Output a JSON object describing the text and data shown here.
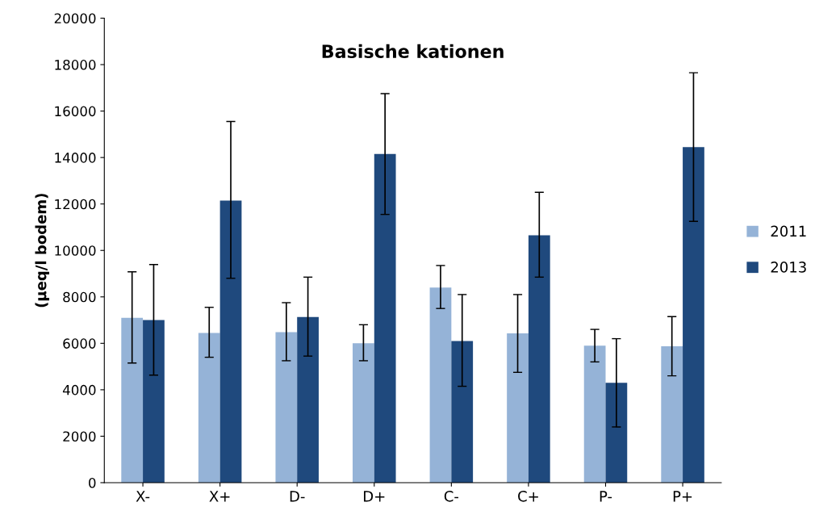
{
  "chart_data": {
    "type": "bar",
    "title": "Basische kationen",
    "ylabel": "(µeq/l bodem)",
    "categories": [
      "X-",
      "X+",
      "D-",
      "D+",
      "C-",
      "C+",
      "P-",
      "P+"
    ],
    "series": [
      {
        "name": "2011",
        "color": "#95b3d7",
        "values": [
          7100,
          6450,
          6480,
          6000,
          8400,
          6430,
          5900,
          5870
        ],
        "errors": [
          [
            5150,
            9080
          ],
          [
            5400,
            7550
          ],
          [
            5250,
            7750
          ],
          [
            5250,
            6800
          ],
          [
            7500,
            9350
          ],
          [
            4750,
            8100
          ],
          [
            5200,
            6600
          ],
          [
            4600,
            7150
          ]
        ]
      },
      {
        "name": "2013",
        "color": "#1f497d",
        "values": [
          7000,
          12150,
          7130,
          14150,
          6100,
          10650,
          4300,
          14450
        ],
        "errors": [
          [
            4630,
            9390
          ],
          [
            8800,
            15550
          ],
          [
            5450,
            8850
          ],
          [
            11550,
            16750
          ],
          [
            4150,
            8100
          ],
          [
            8850,
            12500
          ],
          [
            2400,
            6200
          ],
          [
            11250,
            17650
          ]
        ]
      }
    ],
    "ylim": [
      0,
      20000
    ],
    "yticks": [
      0,
      2000,
      4000,
      6000,
      8000,
      10000,
      12000,
      14000,
      16000,
      18000,
      20000
    ],
    "grid": false,
    "legend": "right"
  }
}
